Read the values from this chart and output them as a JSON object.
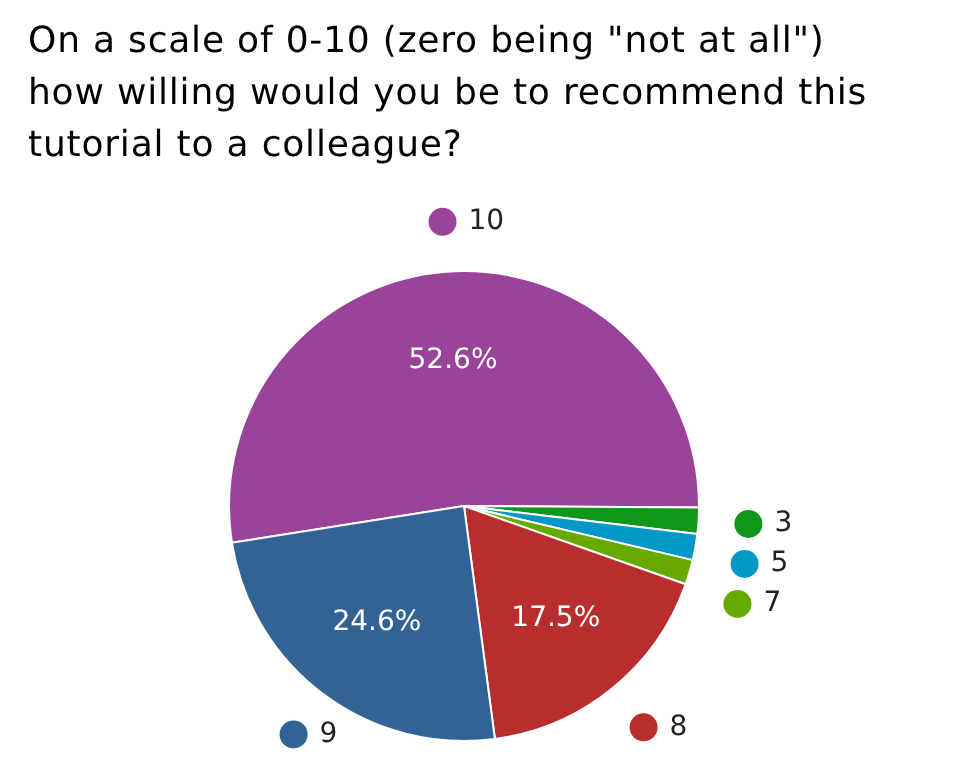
{
  "chart_data": {
    "type": "pie",
    "title": "On a scale of 0-10 (zero being \"not at all\") how willing would you be to recommend this tutorial to a colleague?",
    "categories": [
      "10",
      "3",
      "5",
      "7",
      "8",
      "9"
    ],
    "values": [
      52.6,
      1.8,
      1.8,
      1.7,
      17.5,
      24.6
    ],
    "colors": [
      "#994499",
      "#109618",
      "#0099c6",
      "#66aa00",
      "#b82e2e",
      "#316395"
    ],
    "value_labels": [
      "52.6%",
      null,
      null,
      null,
      "17.5%",
      "24.6%"
    ],
    "legend": "right"
  }
}
